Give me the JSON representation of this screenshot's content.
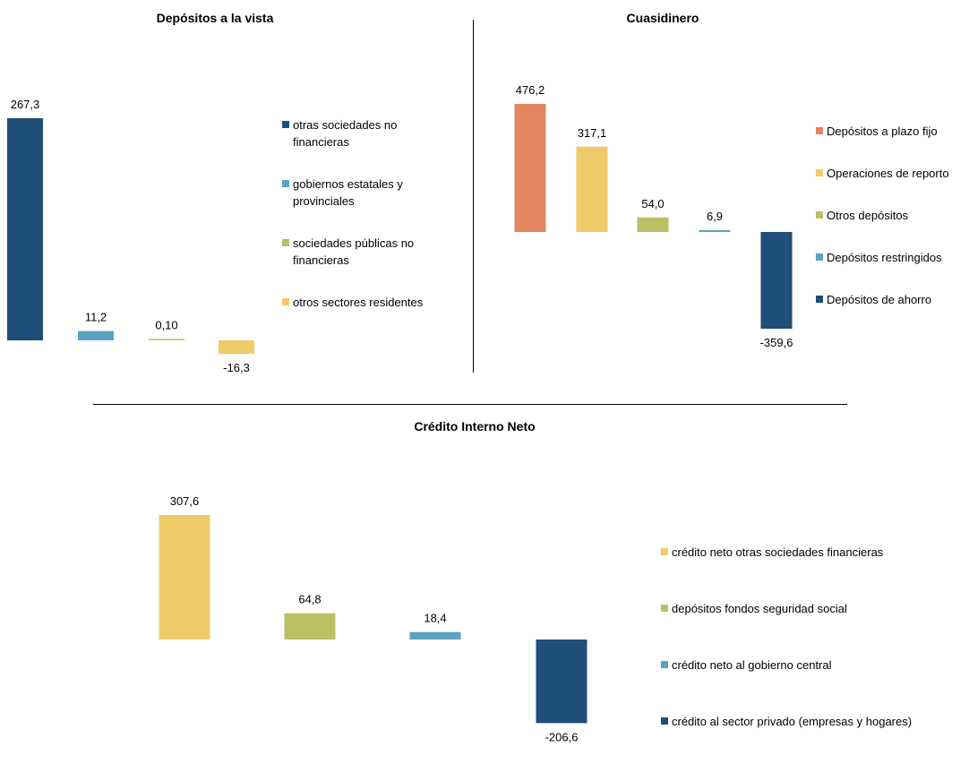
{
  "chart_data": [
    {
      "type": "bar",
      "title": "Depósitos a la vista",
      "categories": [
        "otras sociedades no financieras",
        "gobiernos estatales y provinciales",
        "sociedades públicas no financieras",
        "otros sectores residentes"
      ],
      "values": [
        267.3,
        11.2,
        0.1,
        -16.3
      ],
      "data_labels": [
        "267,3",
        "11,2",
        "0,10",
        "-16,3"
      ],
      "colors": [
        "#1f4e79",
        "#5ba3c0",
        "#bcbf64",
        "#f0cb69"
      ],
      "legend": "right"
    },
    {
      "type": "bar",
      "title": "Cuasidinero",
      "categories": [
        "Depósitos a plazo fijo",
        "Operaciones de reporto",
        "Otros depósitos",
        "Depósitos restringidos",
        "Depósitos de ahorro"
      ],
      "values": [
        476.2,
        317.1,
        54.0,
        6.9,
        -359.6
      ],
      "data_labels": [
        "476,2",
        "317,1",
        "54,0",
        "6,9",
        "-359,6"
      ],
      "colors": [
        "#e48560",
        "#f0cb69",
        "#bcbf64",
        "#5ba3c0",
        "#1f4e79"
      ],
      "legend": "right"
    },
    {
      "type": "bar",
      "title": "Crédito Interno Neto",
      "categories": [
        "crédito neto otras sociedades financieras",
        "depósitos fondos seguridad social",
        "crédito neto al gobierno central",
        "crédito al sector privado (empresas y hogares)"
      ],
      "values": [
        307.6,
        64.8,
        18.4,
        -206.6
      ],
      "data_labels": [
        "307,6",
        "64,8",
        "18,4",
        "-206,6"
      ],
      "colors": [
        "#f0cb69",
        "#bcbf64",
        "#5ba3c0",
        "#1f4e79"
      ],
      "legend": "right"
    }
  ]
}
